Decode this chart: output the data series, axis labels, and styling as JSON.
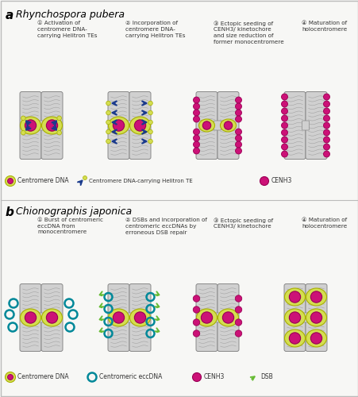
{
  "bg_color": "#f7f7f5",
  "border_color": "#bbbbbb",
  "panel_a_title": "Rhynchospora pubera",
  "panel_b_title": "Chionographis japonica",
  "chr_color_light": "#d0d0d0",
  "chr_color_mid": "#b8b8b8",
  "chr_color_dark": "#909090",
  "chr_edge": "#888888",
  "yellow_fill": "#d4de50",
  "yellow_edge": "#a8b000",
  "magenta_fill": "#cc1177",
  "magenta_edge": "#990055",
  "blue_fill": "#1a3a8c",
  "blue_light": "#4466cc",
  "teal_edge": "#008899",
  "green_fill": "#66bb33",
  "step_labels_a": [
    "① Activation of\ncentromere DNA-\ncarrying Helitron TEs",
    "② Incorporation of\ncentromere DNA-\ncarrying Helitron TEs",
    "③ Ectopic seeding of\nCENH3/ kinetochore\nand size reduction of\nformer monocentromere",
    "④ Maturation of\nholocentromere"
  ],
  "step_labels_b": [
    "① Burst of centromeric\neccDNA from\nmonocentromere",
    "② DSBs and incorporation of\ncentromeric eccDNAs by\nerroneous DSB repair",
    "③ Ectopic seeding of\nCENH3/ kinetochore",
    "④ Maturation of\nholocentromere"
  ]
}
